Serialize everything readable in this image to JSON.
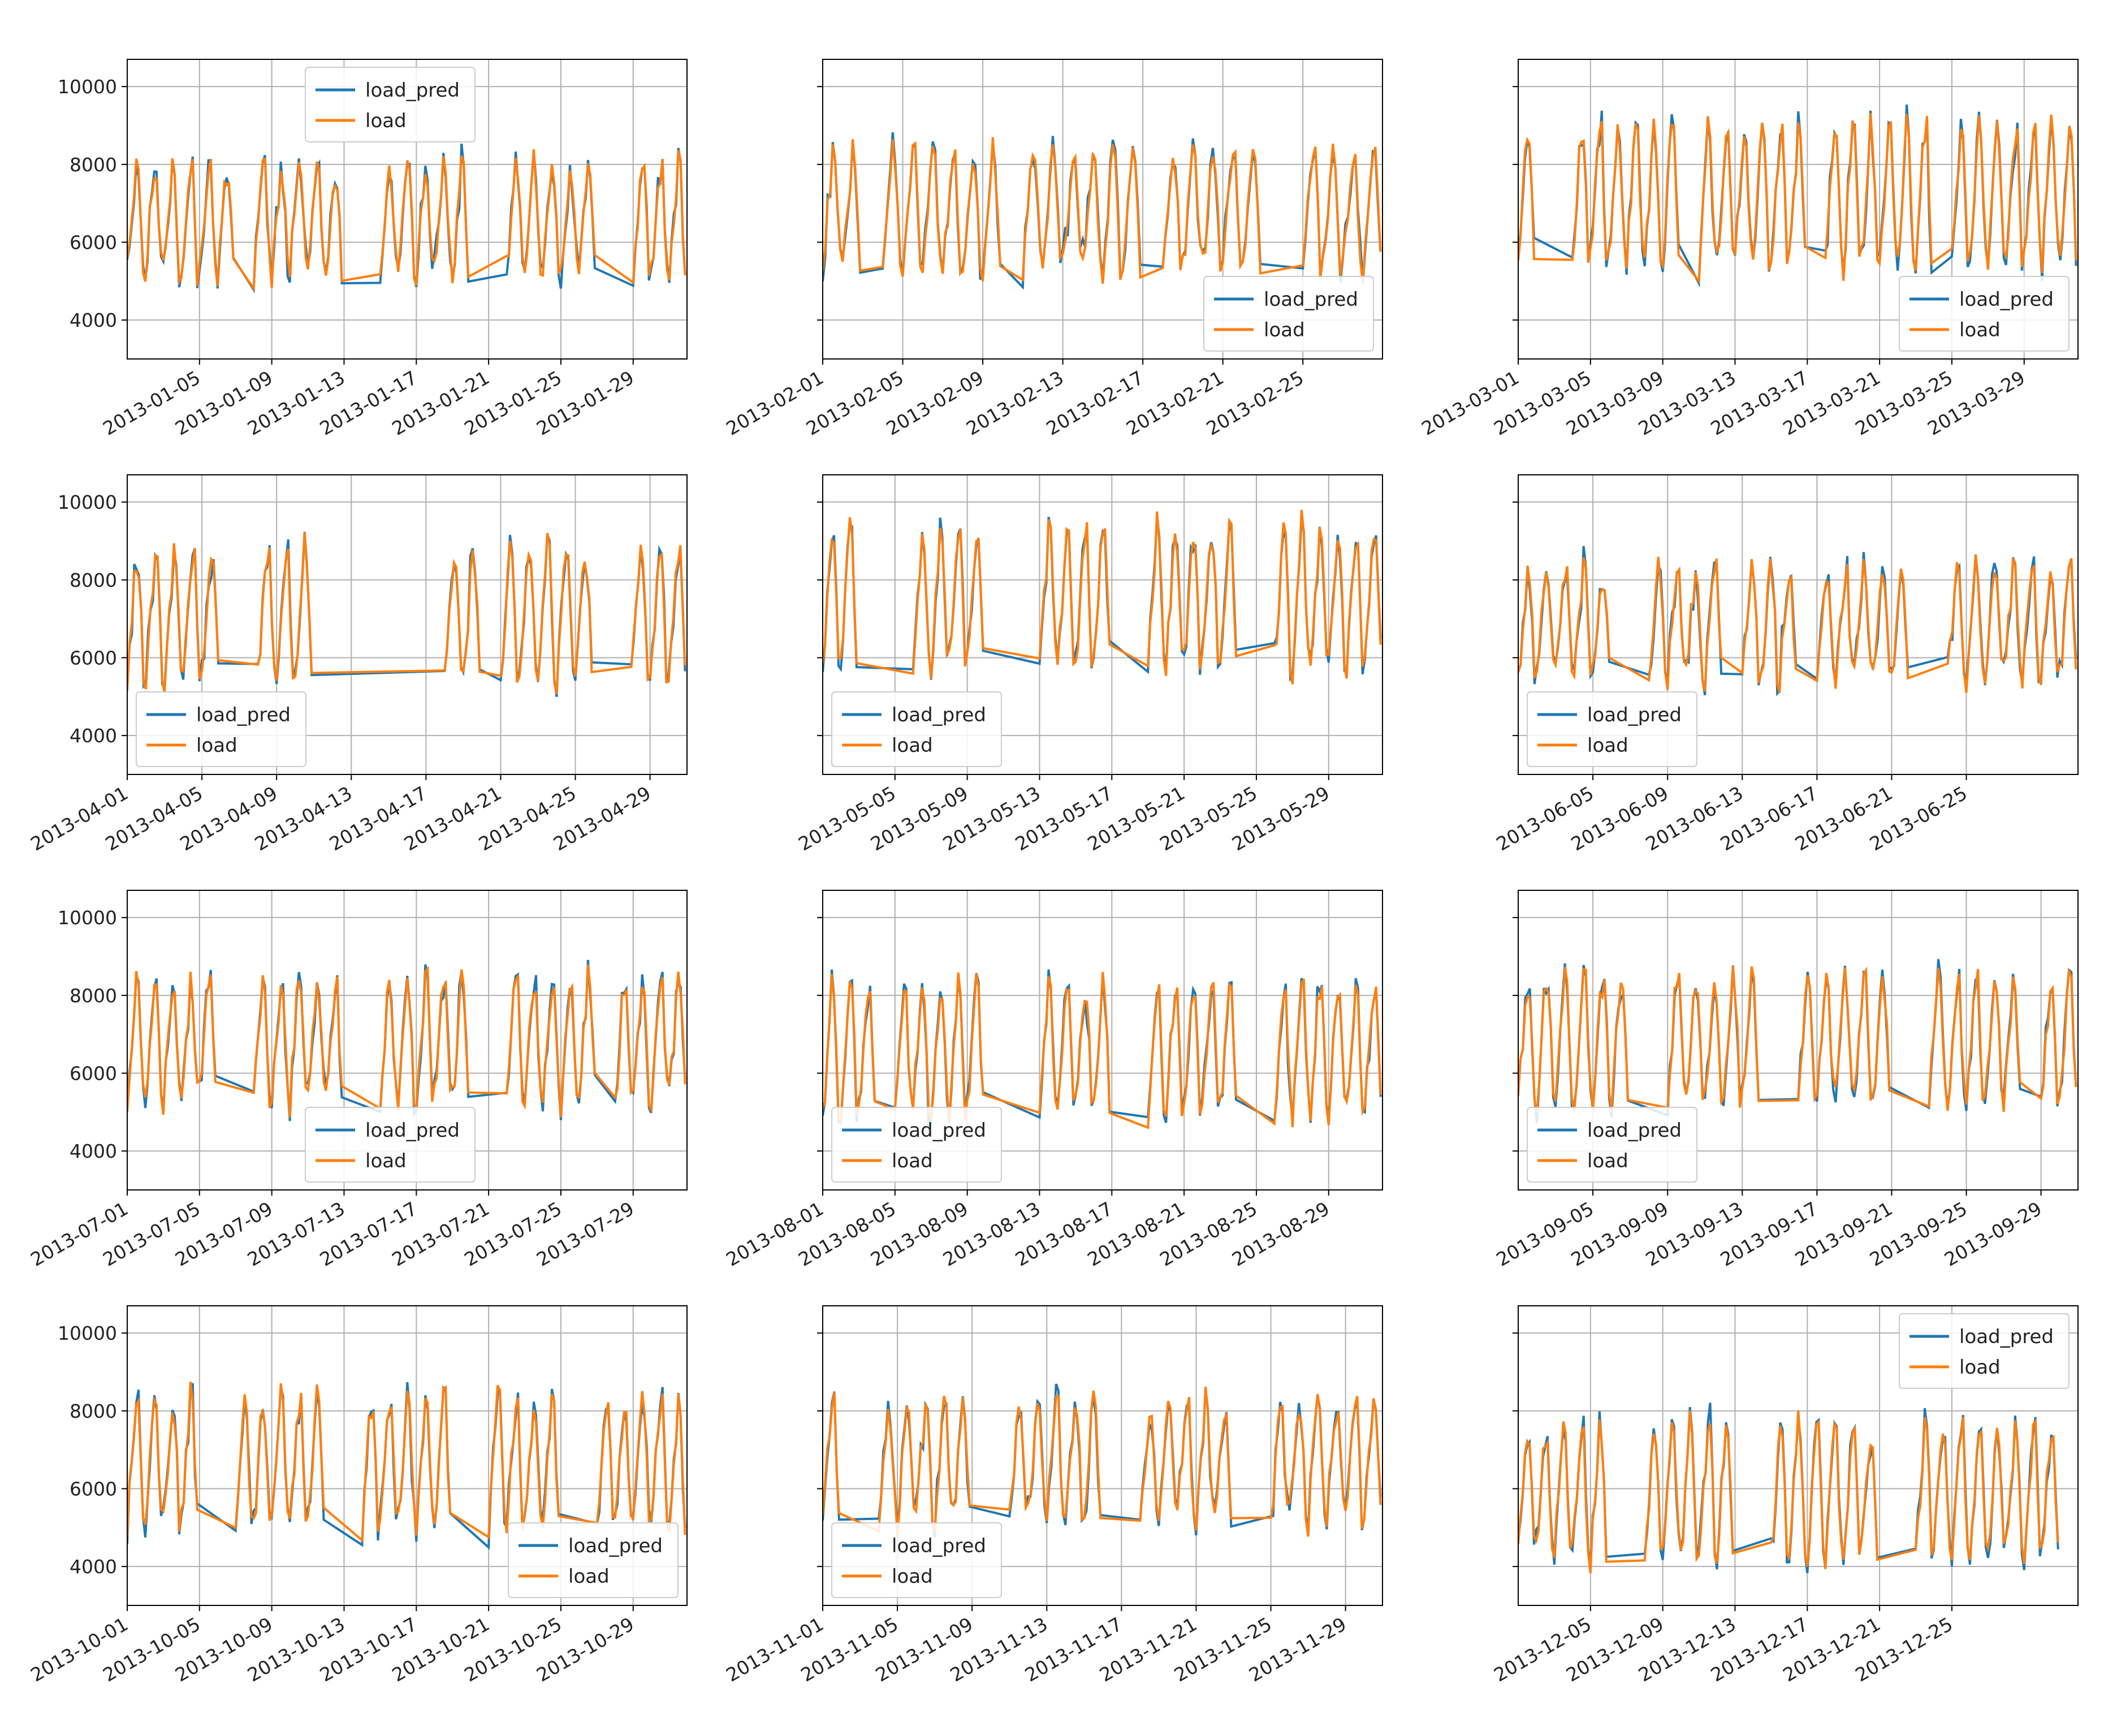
{
  "figure": {
    "colors": {
      "load_pred": "#1f77b4",
      "load": "#ff7f0e",
      "grid": "#b0b0b0",
      "frame": "#000000"
    },
    "legend_labels": [
      "load_pred",
      "load"
    ],
    "y_ticks": [
      4000,
      6000,
      8000,
      10000
    ]
  },
  "chart_data": [
    {
      "type": "line",
      "month": "2013-01",
      "days": 31,
      "ylim": [
        3000,
        10700
      ],
      "x_ticks": [
        "2013-01-05",
        "2013-01-09",
        "2013-01-13",
        "2013-01-17",
        "2013-01-21",
        "2013-01-25",
        "2013-01-29"
      ],
      "legend_loc": "upper center",
      "grid": true,
      "series": [
        "load_pred",
        "load"
      ],
      "peak_max": 8600,
      "trough_min": 4200,
      "present_day_ranges": [
        [
          1,
          6
        ],
        [
          8,
          12
        ],
        [
          15,
          19
        ],
        [
          22,
          26
        ],
        [
          29,
          31
        ]
      ]
    },
    {
      "type": "line",
      "month": "2013-02",
      "days": 28,
      "ylim": [
        3000,
        10700
      ],
      "x_ticks": [
        "2013-02-01",
        "2013-02-05",
        "2013-02-09",
        "2013-02-13",
        "2013-02-17",
        "2013-02-21",
        "2013-02-25"
      ],
      "legend_loc": "lower right",
      "grid": true,
      "series": [
        "load_pred",
        "load"
      ],
      "peak_max": 9000,
      "trough_min": 4300,
      "present_day_ranges": [
        [
          1,
          2
        ],
        [
          4,
          9
        ],
        [
          11,
          16
        ],
        [
          18,
          22
        ],
        [
          25,
          28
        ]
      ]
    },
    {
      "type": "line",
      "month": "2013-03",
      "days": 31,
      "ylim": [
        3000,
        10700
      ],
      "x_ticks": [
        "2013-03-01",
        "2013-03-05",
        "2013-03-09",
        "2013-03-13",
        "2013-03-17",
        "2013-03-21",
        "2013-03-25",
        "2013-03-29"
      ],
      "legend_loc": "lower right",
      "grid": true,
      "series": [
        "load_pred",
        "load"
      ],
      "peak_max": 9700,
      "trough_min": 4400,
      "present_day_ranges": [
        [
          1,
          1
        ],
        [
          4,
          9
        ],
        [
          11,
          16
        ],
        [
          18,
          23
        ],
        [
          25,
          31
        ]
      ]
    },
    {
      "type": "line",
      "month": "2013-04",
      "days": 30,
      "ylim": [
        3000,
        10700
      ],
      "x_ticks": [
        "2013-04-01",
        "2013-04-05",
        "2013-04-09",
        "2013-04-13",
        "2013-04-17",
        "2013-04-21",
        "2013-04-25",
        "2013-04-29"
      ],
      "legend_loc": "lower left",
      "grid": true,
      "series": [
        "load_pred",
        "load"
      ],
      "peak_max": 9400,
      "trough_min": 4500,
      "present_day_ranges": [
        [
          1,
          5
        ],
        [
          8,
          10
        ],
        [
          18,
          19
        ],
        [
          21,
          25
        ],
        [
          28,
          30
        ]
      ]
    },
    {
      "type": "line",
      "month": "2013-05",
      "days": 31,
      "ylim": [
        3000,
        10700
      ],
      "x_ticks": [
        "2013-05-05",
        "2013-05-09",
        "2013-05-13",
        "2013-05-17",
        "2013-05-21",
        "2013-05-25",
        "2013-05-29"
      ],
      "legend_loc": "lower left",
      "grid": true,
      "series": [
        "load_pred",
        "load"
      ],
      "peak_max": 10000,
      "trough_min": 4800,
      "present_day_ranges": [
        [
          1,
          2
        ],
        [
          6,
          9
        ],
        [
          13,
          16
        ],
        [
          19,
          23
        ],
        [
          26,
          31
        ]
      ]
    },
    {
      "type": "line",
      "month": "2013-06",
      "days": 30,
      "ylim": [
        3000,
        10700
      ],
      "x_ticks": [
        "2013-06-05",
        "2013-06-09",
        "2013-06-13",
        "2013-06-17",
        "2013-06-21",
        "2013-06-25"
      ],
      "legend_loc": "lower left",
      "grid": true,
      "series": [
        "load_pred",
        "load"
      ],
      "peak_max": 9000,
      "trough_min": 4500,
      "present_day_ranges": [
        [
          1,
          5
        ],
        [
          8,
          11
        ],
        [
          13,
          15
        ],
        [
          17,
          21
        ],
        [
          24,
          30
        ]
      ]
    },
    {
      "type": "line",
      "month": "2013-07",
      "days": 31,
      "ylim": [
        3000,
        10700
      ],
      "x_ticks": [
        "2013-07-01",
        "2013-07-05",
        "2013-07-09",
        "2013-07-13",
        "2013-07-17",
        "2013-07-21",
        "2013-07-25",
        "2013-07-29"
      ],
      "legend_loc": "lower center",
      "grid": true,
      "series": [
        "load_pred",
        "load"
      ],
      "peak_max": 9100,
      "trough_min": 4300,
      "present_day_ranges": [
        [
          1,
          5
        ],
        [
          8,
          12
        ],
        [
          15,
          19
        ],
        [
          22,
          26
        ],
        [
          28,
          31
        ]
      ]
    },
    {
      "type": "line",
      "month": "2013-08",
      "days": 31,
      "ylim": [
        3000,
        10700
      ],
      "x_ticks": [
        "2013-08-01",
        "2013-08-05",
        "2013-08-09",
        "2013-08-13",
        "2013-08-17",
        "2013-08-21",
        "2013-08-25",
        "2013-08-29"
      ],
      "legend_loc": "lower left",
      "grid": true,
      "series": [
        "load_pred",
        "load"
      ],
      "peak_max": 9000,
      "trough_min": 4000,
      "present_day_ranges": [
        [
          1,
          3
        ],
        [
          5,
          9
        ],
        [
          13,
          16
        ],
        [
          19,
          23
        ],
        [
          26,
          31
        ]
      ]
    },
    {
      "type": "line",
      "month": "2013-09",
      "days": 30,
      "ylim": [
        3000,
        10700
      ],
      "x_ticks": [
        "2013-09-05",
        "2013-09-09",
        "2013-09-13",
        "2013-09-17",
        "2013-09-21",
        "2013-09-25",
        "2013-09-29"
      ],
      "legend_loc": "lower left",
      "grid": true,
      "series": [
        "load_pred",
        "load"
      ],
      "peak_max": 9200,
      "trough_min": 4200,
      "present_day_ranges": [
        [
          1,
          6
        ],
        [
          9,
          13
        ],
        [
          16,
          20
        ],
        [
          23,
          27
        ],
        [
          29,
          30
        ]
      ]
    },
    {
      "type": "line",
      "month": "2013-10",
      "days": 31,
      "ylim": [
        3000,
        10700
      ],
      "x_ticks": [
        "2013-10-01",
        "2013-10-05",
        "2013-10-09",
        "2013-10-13",
        "2013-10-17",
        "2013-10-21",
        "2013-10-25",
        "2013-10-29"
      ],
      "legend_loc": "lower right",
      "grid": true,
      "series": [
        "load_pred",
        "load"
      ],
      "peak_max": 9000,
      "trough_min": 4000,
      "present_day_ranges": [
        [
          1,
          4
        ],
        [
          7,
          11
        ],
        [
          14,
          18
        ],
        [
          21,
          24
        ],
        [
          27,
          31
        ]
      ]
    },
    {
      "type": "line",
      "month": "2013-11",
      "days": 30,
      "ylim": [
        3000,
        10700
      ],
      "x_ticks": [
        "2013-11-01",
        "2013-11-05",
        "2013-11-09",
        "2013-11-13",
        "2013-11-17",
        "2013-11-21",
        "2013-11-25",
        "2013-11-29"
      ],
      "legend_loc": "lower left",
      "grid": true,
      "series": [
        "load_pred",
        "load"
      ],
      "peak_max": 8900,
      "trough_min": 4200,
      "present_day_ranges": [
        [
          1,
          1
        ],
        [
          4,
          8
        ],
        [
          11,
          15
        ],
        [
          18,
          22
        ],
        [
          25,
          30
        ]
      ]
    },
    {
      "type": "line",
      "month": "2013-12",
      "days": 31,
      "ylim": [
        3000,
        10700
      ],
      "x_ticks": [
        "2013-12-05",
        "2013-12-09",
        "2013-12-13",
        "2013-12-17",
        "2013-12-21",
        "2013-12-25"
      ],
      "legend_loc": "upper right",
      "grid": true,
      "series": [
        "load_pred",
        "load"
      ],
      "peak_max": 8300,
      "trough_min": 3300,
      "present_day_ranges": [
        [
          1,
          5
        ],
        [
          8,
          12
        ],
        [
          15,
          20
        ],
        [
          23,
          30
        ]
      ]
    }
  ]
}
